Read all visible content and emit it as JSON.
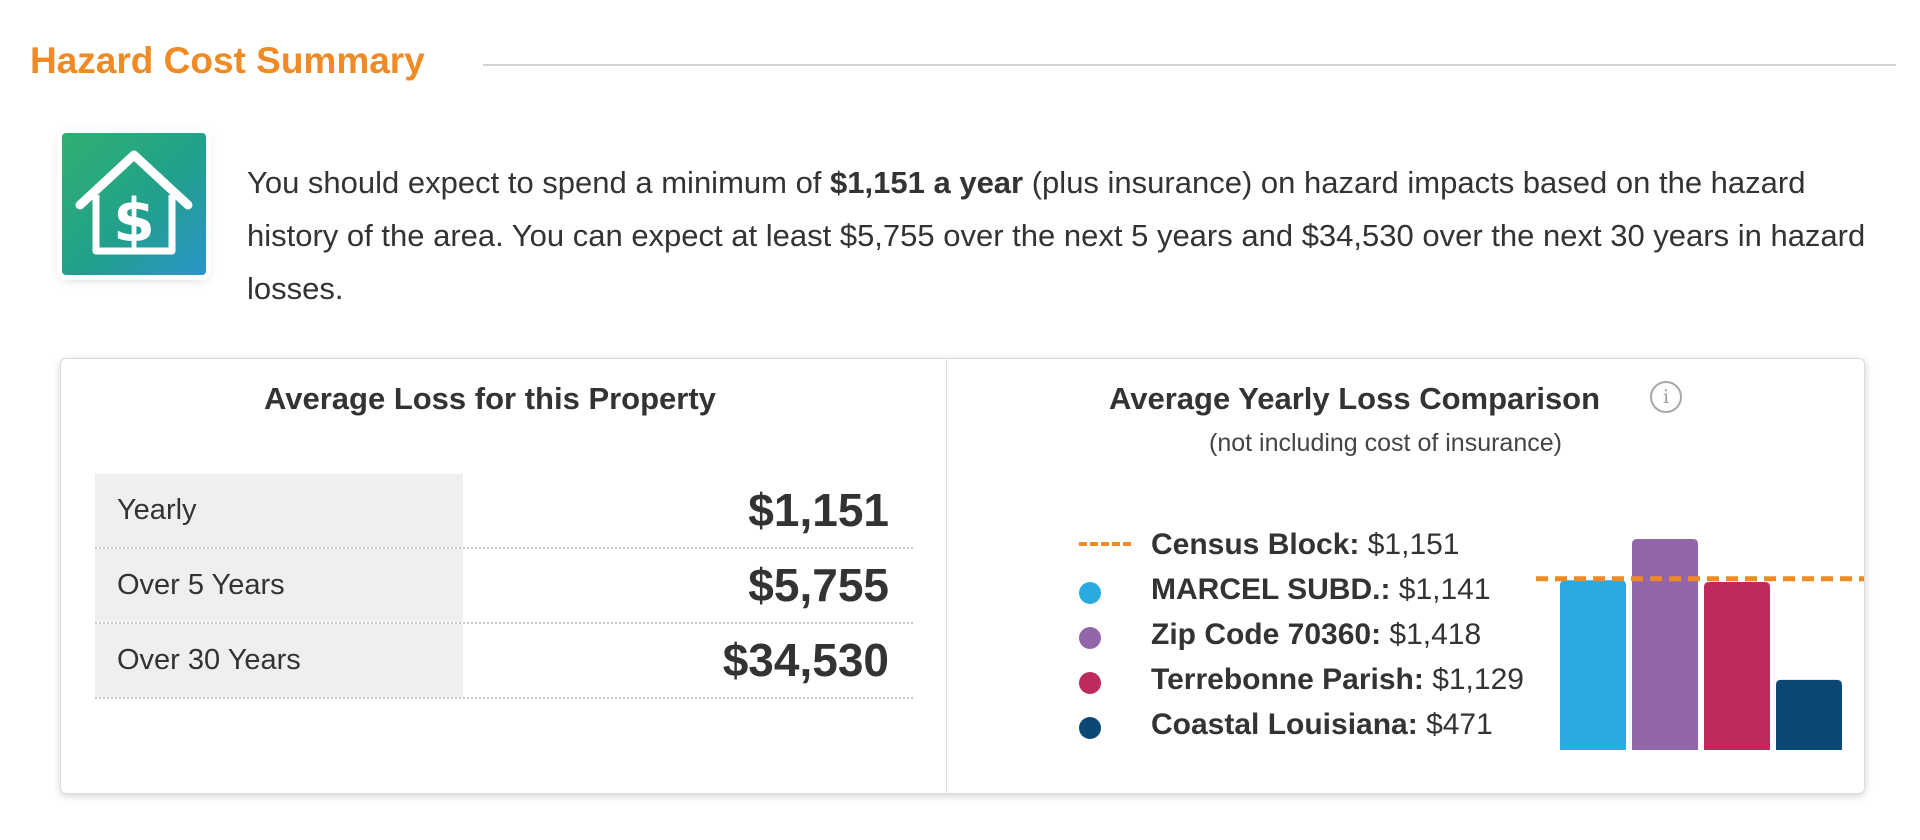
{
  "header": {
    "title": "Hazard Cost Summary"
  },
  "intro": {
    "icon": "house-dollar-icon",
    "text_1": "You should expect to spend a minimum of ",
    "bold": "$1,151 a year",
    "text_2": " (plus insurance) on hazard impacts based on the hazard history of the area. You can expect at least $5,755 over the next 5 years and $34,530 over the next 30 years in hazard losses."
  },
  "average_loss": {
    "title": "Average Loss for this Property",
    "rows": [
      {
        "label": "Yearly",
        "value": "$1,151"
      },
      {
        "label": "Over 5 Years",
        "value": "$5,755"
      },
      {
        "label": "Over 30 Years",
        "value": "$34,530"
      }
    ]
  },
  "comparison": {
    "title": "Average Yearly Loss Comparison",
    "subtitle": "(not including cost of insurance)",
    "info_icon": "info-icon",
    "info_glyph": "i",
    "legend": [
      {
        "name": "Census Block:",
        "value": "$1,151",
        "marker": "dashed-line",
        "color": "#f08a24"
      },
      {
        "name": "MARCEL SUBD.:",
        "value": "$1,141",
        "marker": "dot",
        "color": "#29aae1"
      },
      {
        "name": "Zip Code 70360:",
        "value": "$1,418",
        "marker": "dot",
        "color": "#9366aa"
      },
      {
        "name": "Terrebonne Parish:",
        "value": "$1,129",
        "marker": "dot",
        "color": "#bf2a5c"
      },
      {
        "name": "Coastal Louisiana:",
        "value": "$471",
        "marker": "dot",
        "color": "#0d4774"
      }
    ]
  },
  "chart_data": {
    "type": "bar",
    "categories": [
      "MARCEL SUBD.",
      "Zip Code 70360",
      "Terrebonne Parish",
      "Coastal Louisiana"
    ],
    "values": [
      1141,
      1418,
      1129,
      471
    ],
    "colors": [
      "#29aae1",
      "#9366aa",
      "#bf2a5c",
      "#0d4774"
    ],
    "reference_line": {
      "name": "Census Block",
      "value": 1151,
      "color": "#f08a24",
      "style": "dashed"
    },
    "ylim": [
      0,
      1418
    ],
    "grid": false,
    "axes_visible": false
  }
}
